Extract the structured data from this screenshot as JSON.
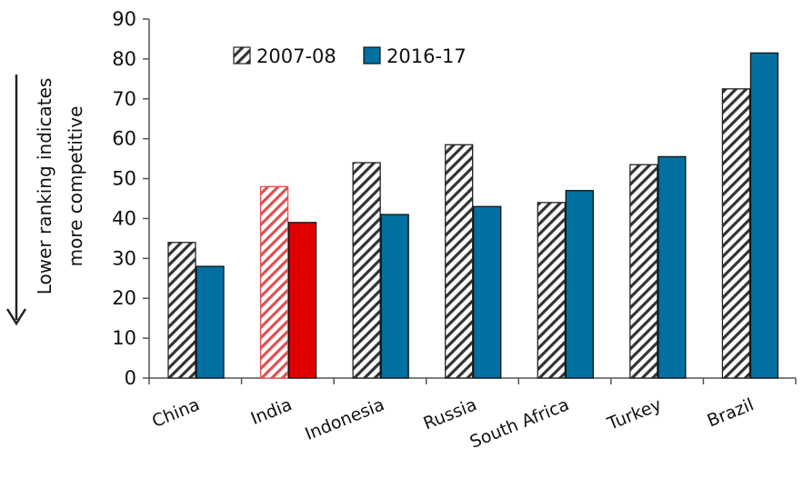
{
  "chart_data": {
    "type": "bar",
    "title": "",
    "xlabel": "",
    "ylabel_lines": [
      "Lower ranking indicates",
      "more competitive"
    ],
    "categories": [
      "China",
      "India",
      "Indonesia",
      "Russia",
      "South Africa",
      "Turkey",
      "Brazil"
    ],
    "series": [
      {
        "name": "2007-08",
        "values": [
          34,
          48,
          54,
          58.5,
          44,
          53.5,
          72.5
        ]
      },
      {
        "name": "2016-17",
        "values": [
          28,
          39,
          41,
          43,
          47,
          55.5,
          81.5
        ]
      }
    ],
    "highlight_category": "India",
    "ylim": [
      0,
      90
    ],
    "yticks": [
      0,
      10,
      20,
      30,
      40,
      50,
      60,
      70,
      80,
      90
    ],
    "grid": false,
    "legend_position": "top-left",
    "colors": {
      "series_2016": "#0070A0",
      "highlight_2016": "#E00000",
      "hatch": "#333333",
      "highlight_hatch": "#E05050",
      "axis": "#555555"
    }
  }
}
